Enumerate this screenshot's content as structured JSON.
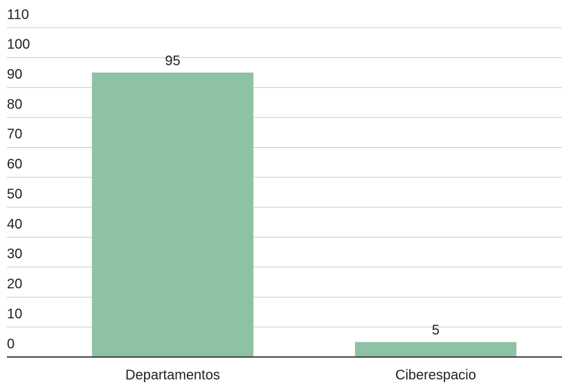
{
  "chart_data": {
    "type": "bar",
    "categories": [
      "Departamentos",
      "Ciberespacio"
    ],
    "values": [
      95,
      5
    ],
    "color": "#8dc3a4",
    "ylim": [
      0,
      110
    ],
    "yticks": [
      0,
      10,
      20,
      30,
      40,
      50,
      60,
      70,
      80,
      90,
      100,
      110
    ],
    "grid": true
  }
}
